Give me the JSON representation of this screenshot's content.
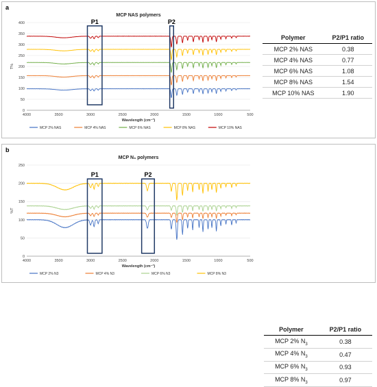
{
  "chart_data": [
    {
      "type": "line",
      "panel_label": "a",
      "title": "MCP NAS polymers",
      "xlabel": "Wavelength (cm⁻¹)",
      "ylabel": "T%",
      "xlim": [
        4000,
        500
      ],
      "ylim": [
        0,
        400
      ],
      "x_ticks": [
        4000,
        3500,
        3000,
        2500,
        2000,
        1500,
        1000,
        500
      ],
      "y_ticks": [
        0,
        50,
        100,
        150,
        200,
        250,
        300,
        350,
        400
      ],
      "grid": true,
      "legend_position": "bottom",
      "series": [
        {
          "name": "MCP 2%  NAS",
          "color": "#4472c4",
          "baseline": 98
        },
        {
          "name": "MCP 4% NAS",
          "color": "#ed7d31",
          "baseline": 158
        },
        {
          "name": "MCP 6% NAS",
          "color": "#70ad47",
          "baseline": 218
        },
        {
          "name": "MCP 8% NAS",
          "color": "#ffc000",
          "baseline": 278
        },
        {
          "name": "MCP 10% NAS",
          "color": "#c00000",
          "baseline": 338
        }
      ],
      "annotations": [
        {
          "label": "P1",
          "x_range": [
            3050,
            2820
          ],
          "y_range": [
            25,
            385
          ]
        },
        {
          "label": "P2",
          "x_range": [
            1760,
            1700
          ],
          "y_range": [
            10,
            385
          ]
        }
      ]
    },
    {
      "type": "line",
      "panel_label": "b",
      "title": "MCP N₃ polymers",
      "xlabel": "Wavelength (cm⁻¹)",
      "ylabel": "%T",
      "xlim": [
        4000,
        500
      ],
      "ylim": [
        0,
        250
      ],
      "x_ticks": [
        4000,
        3500,
        3000,
        2500,
        2000,
        1500,
        1000,
        500
      ],
      "y_ticks": [
        0,
        50,
        100,
        150,
        200,
        250
      ],
      "grid": true,
      "legend_position": "bottom",
      "series": [
        {
          "name": "MCP 2% N3",
          "color": "#4472c4",
          "baseline": 100
        },
        {
          "name": "MCP 4% N3",
          "color": "#ed7d31",
          "baseline": 118
        },
        {
          "name": "MCP 6% N3",
          "color": "#a9d18e",
          "baseline": 138
        },
        {
          "name": "MCP 8% N3",
          "color": "#ffc000",
          "baseline": 200
        }
      ],
      "annotations": [
        {
          "label": "P1",
          "x_range": [
            3050,
            2820
          ],
          "y_range": [
            8,
            212
          ]
        },
        {
          "label": "P2",
          "x_range": [
            2200,
            2000
          ],
          "y_range": [
            8,
            212
          ]
        }
      ]
    }
  ],
  "tables": {
    "a": {
      "headers": [
        "Polymer",
        "P2/P1 ratio"
      ],
      "rows": [
        {
          "polymer": "MCP 2% NAS",
          "ratio": "0.38"
        },
        {
          "polymer": "MCP 4% NAS",
          "ratio": "0.77"
        },
        {
          "polymer": "MCP 6% NAS",
          "ratio": "1.08"
        },
        {
          "polymer": "MCP 8% NAS",
          "ratio": "1.54"
        },
        {
          "polymer": "MCP 10% NAS",
          "ratio": "1.90"
        }
      ]
    },
    "b": {
      "headers": [
        "Polymer",
        "P2/P1 ratio"
      ],
      "rows": [
        {
          "polymer_prefix": "MCP 2% N",
          "polymer_sub": "3",
          "ratio": "0.38"
        },
        {
          "polymer_prefix": "MCP 4% N",
          "polymer_sub": "3",
          "ratio": "0.47"
        },
        {
          "polymer_prefix": "MCP 6% N",
          "polymer_sub": "3",
          "ratio": "0.93"
        },
        {
          "polymer_prefix": "MCP 8% N",
          "polymer_sub": "3",
          "ratio": "0.97"
        }
      ]
    }
  }
}
